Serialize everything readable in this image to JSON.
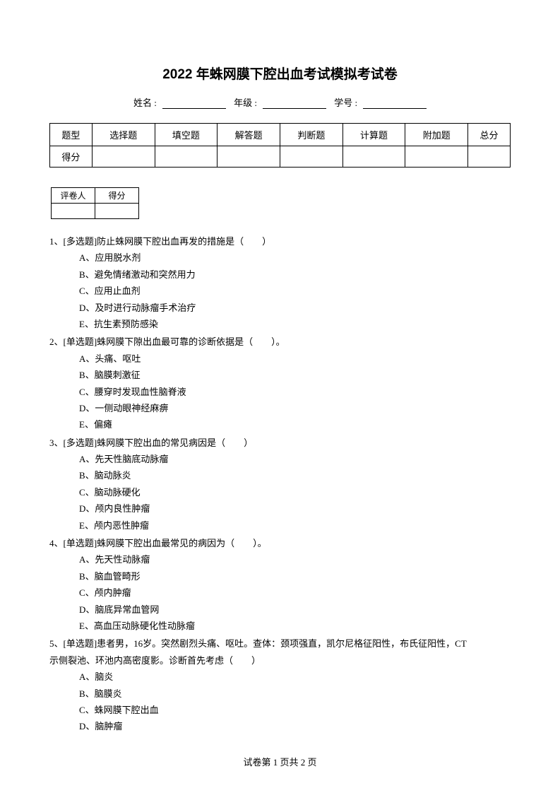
{
  "title": "2022 年蛛网膜下腔出血考试模拟考试卷",
  "info": {
    "name_label": "姓名 :",
    "grade_label": "年级 :",
    "id_label": "学号 :"
  },
  "score_table": {
    "headers": [
      "题型",
      "选择题",
      "填空题",
      "解答题",
      "判断题",
      "计算题",
      "附加题",
      "总分"
    ],
    "row_label": "得分"
  },
  "grader_table": {
    "col1": "评卷人",
    "col2": "得分"
  },
  "questions": [
    {
      "num": "1、",
      "text": "[多选题]防止蛛网膜下腔出血再发的措施是（　　）",
      "options": [
        "A、应用脱水剂",
        "B、避免情绪激动和突然用力",
        "C、应用止血剂",
        "D、及时进行动脉瘤手术治疗",
        "E、抗生素预防感染"
      ]
    },
    {
      "num": "2、",
      "text": "[单选题]蛛网膜下隙出血最可靠的诊断依据是（　　）。",
      "options": [
        "A、头痛、呕吐",
        "B、脑膜刺激征",
        "C、腰穿时发现血性脑脊液",
        "D、一侧动眼神经麻痹",
        "E、偏瘫"
      ]
    },
    {
      "num": "3、",
      "text": "[多选题]蛛网膜下腔出血的常见病因是（　　）",
      "options": [
        "A、先天性脑底动脉瘤",
        "B、脑动脉炎",
        "C、脑动脉硬化",
        "D、颅内良性肿瘤",
        "E、颅内恶性肿瘤"
      ]
    },
    {
      "num": "4、",
      "text": "[单选题]蛛网膜下腔出血最常见的病因为（　　）。",
      "options": [
        "A、先天性动脉瘤",
        "B、脑血管畸形",
        "C、颅内肿瘤",
        "D、脑底异常血管网",
        "E、高血压动脉硬化性动脉瘤"
      ]
    },
    {
      "num": "5、",
      "text": "[单选题]患者男，16岁。突然剧烈头痛、呕吐。查体：颈项强直，凯尔尼格征阳性，布氏征阳性，CT",
      "text2": "示侧裂池、环池内高密度影。诊断首先考虑（　　）",
      "options": [
        "A、脑炎",
        "B、脑膜炎",
        "C、蛛网膜下腔出血",
        "D、脑肿瘤"
      ]
    }
  ],
  "footer": "试卷第 1 页共 2 页"
}
